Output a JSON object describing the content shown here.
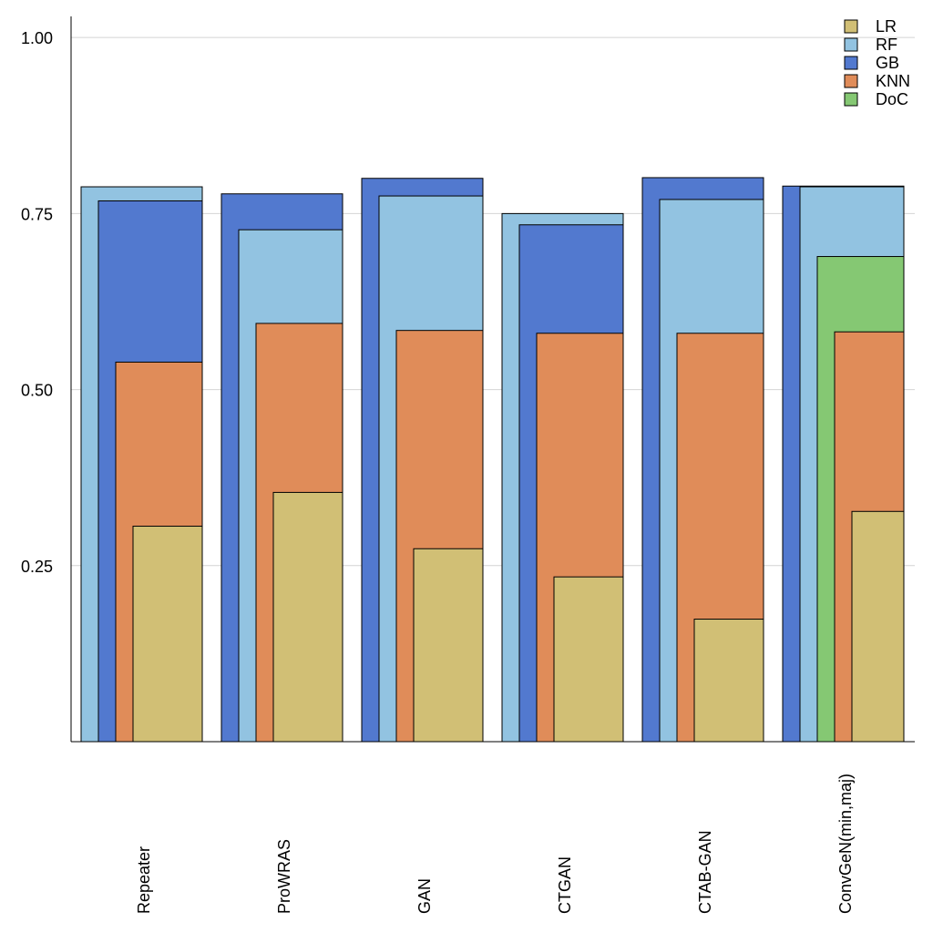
{
  "chart_data": {
    "type": "bar",
    "categories": [
      "Repeater",
      "ProWRAS",
      "GAN",
      "CTGAN",
      "CTAB-GAN",
      "ConvGeN(min,maj)"
    ],
    "series": [
      {
        "name": "LR",
        "color": "#d1bf75",
        "values": [
          0.306,
          0.354,
          0.274,
          0.234,
          0.174,
          0.327
        ]
      },
      {
        "name": "RF",
        "color": "#92c3e1",
        "values": [
          0.788,
          0.727,
          0.775,
          0.75,
          0.77,
          0.788
        ]
      },
      {
        "name": "GB",
        "color": "#5279cf",
        "values": [
          0.768,
          0.778,
          0.8,
          0.734,
          0.801,
          0.789
        ]
      },
      {
        "name": "KNN",
        "color": "#e08c59",
        "values": [
          0.539,
          0.594,
          0.584,
          0.58,
          0.58,
          0.582
        ]
      },
      {
        "name": "DoC",
        "color": "#85c873",
        "values": [
          null,
          null,
          null,
          null,
          null,
          0.689
        ]
      }
    ],
    "yticks": [
      "0.25",
      "0.50",
      "0.75",
      "1.00"
    ],
    "ylim": [
      0,
      1.03
    ],
    "grid": true,
    "legend": "top-right",
    "title": "",
    "xlabel": "",
    "ylabel": ""
  }
}
